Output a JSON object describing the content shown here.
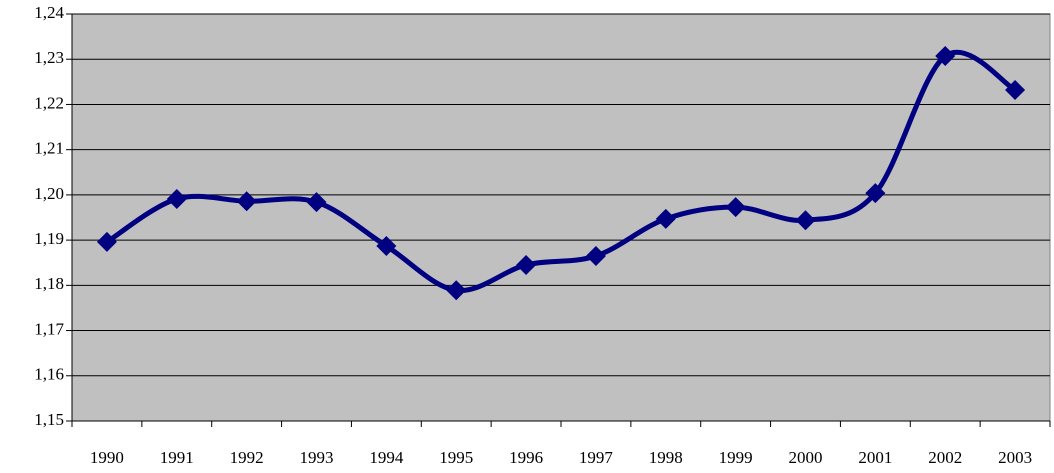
{
  "chart_data": {
    "type": "line",
    "categories": [
      "1990",
      "1991",
      "1992",
      "1993",
      "1994",
      "1995",
      "1996",
      "1997",
      "1998",
      "1999",
      "2000",
      "2001",
      "2002",
      "2003"
    ],
    "values": [
      1.1896,
      1.1991,
      1.1986,
      1.1984,
      1.1887,
      1.1789,
      1.1845,
      1.1865,
      1.1947,
      1.1973,
      1.1944,
      1.2004,
      1.2307,
      1.2232
    ],
    "color": "#000080",
    "ylim": [
      1.15,
      1.24
    ],
    "yticks": [
      {
        "value": 1.15,
        "label": "1,15"
      },
      {
        "value": 1.16,
        "label": "1,16"
      },
      {
        "value": 1.17,
        "label": "1,17"
      },
      {
        "value": 1.18,
        "label": "1,18"
      },
      {
        "value": 1.19,
        "label": "1,19"
      },
      {
        "value": 1.2,
        "label": "1,20"
      },
      {
        "value": 1.21,
        "label": "1,21"
      },
      {
        "value": 1.22,
        "label": "1,22"
      },
      {
        "value": 1.23,
        "label": "1,23"
      },
      {
        "value": 1.24,
        "label": "1,24"
      }
    ],
    "grid": true
  }
}
